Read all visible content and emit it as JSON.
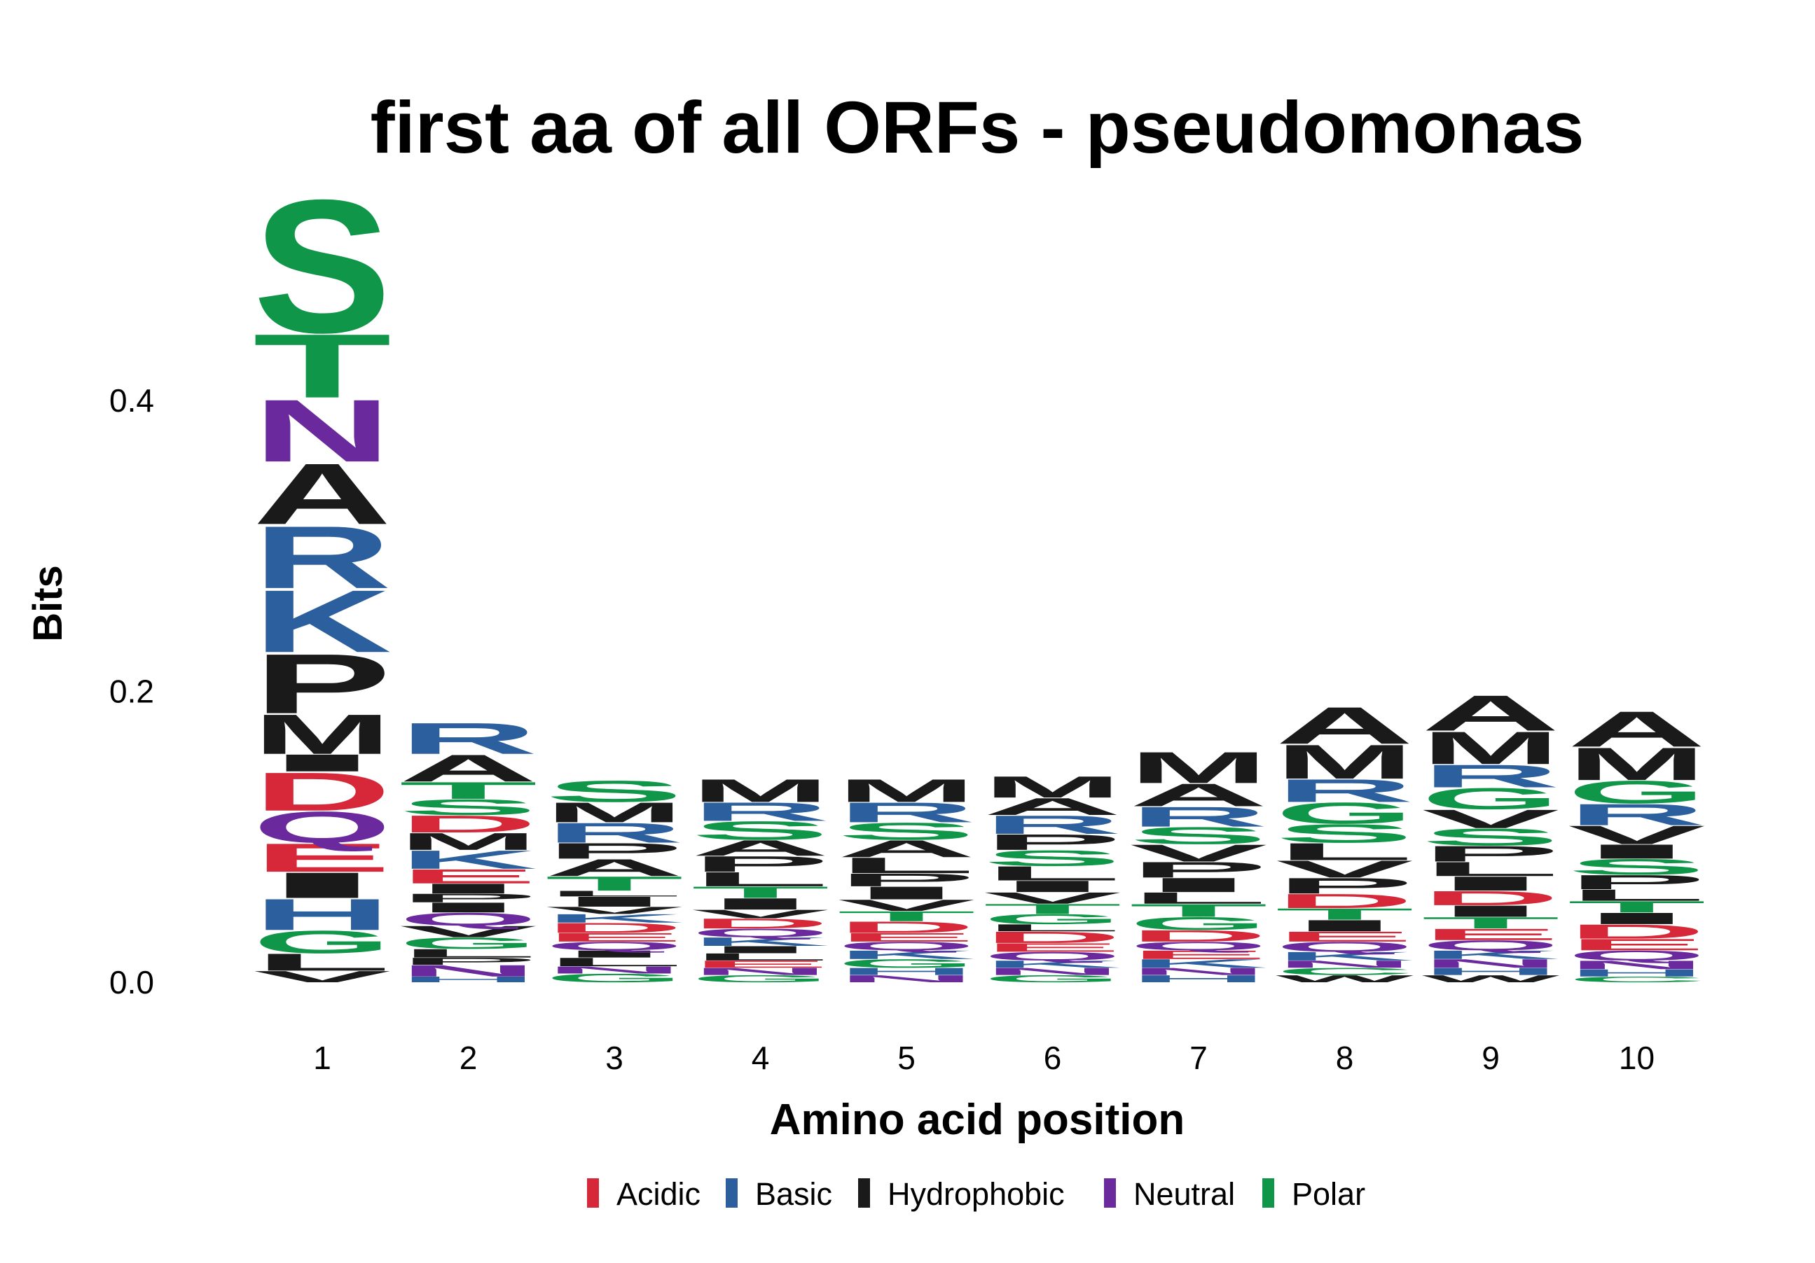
{
  "chart_data": {
    "type": "sequence-logo",
    "title": "first aa of all ORFs - pseudomonas",
    "xlabel": "Amino acid position",
    "ylabel": "Bits",
    "ylim": [
      0,
      0.5
    ],
    "yticks": [
      "0.0",
      "0.2",
      "0.4"
    ],
    "ytick_values": [
      0.0,
      0.2,
      0.4
    ],
    "grid": false,
    "legend_position": "bottom",
    "colors": {
      "Acidic": "#d62839",
      "Basic": "#2c5f9e",
      "Hydrophobic": "#1a1a1a",
      "Neutral": "#6a2a9e",
      "Polar": "#109648"
    },
    "legend": [
      "Acidic",
      "Basic",
      "Hydrophobic",
      "Neutral",
      "Polar"
    ],
    "residue_class": {
      "D": "Acidic",
      "E": "Acidic",
      "R": "Basic",
      "K": "Basic",
      "H": "Basic",
      "A": "Hydrophobic",
      "V": "Hydrophobic",
      "L": "Hydrophobic",
      "I": "Hydrophobic",
      "P": "Hydrophobic",
      "M": "Hydrophobic",
      "F": "Hydrophobic",
      "W": "Hydrophobic",
      "Q": "Neutral",
      "N": "Neutral",
      "S": "Polar",
      "T": "Polar",
      "G": "Polar",
      "Y": "Polar",
      "C": "Polar"
    },
    "positions": [
      {
        "label": "1",
        "stack": [
          [
            "V",
            0.008
          ],
          [
            "L",
            0.012
          ],
          [
            "G",
            0.016
          ],
          [
            "H",
            0.022
          ],
          [
            "I",
            0.018
          ],
          [
            "E",
            0.02
          ],
          [
            "Q",
            0.022
          ],
          [
            "D",
            0.027
          ],
          [
            "I",
            0.012
          ],
          [
            "M",
            0.028
          ],
          [
            "P",
            0.042
          ],
          [
            "K",
            0.044
          ],
          [
            "R",
            0.044
          ],
          [
            "A",
            0.043
          ],
          [
            "N",
            0.044
          ],
          [
            "T",
            0.045
          ],
          [
            "S",
            0.094
          ]
        ]
      },
      {
        "label": "2",
        "stack": [
          [
            "H",
            0.004
          ],
          [
            "N",
            0.008
          ],
          [
            "P",
            0.005
          ],
          [
            "L",
            0.006
          ],
          [
            "G",
            0.008
          ],
          [
            "V",
            0.008
          ],
          [
            "Q",
            0.009
          ],
          [
            "I",
            0.007
          ],
          [
            "P",
            0.006
          ],
          [
            "I",
            0.007
          ],
          [
            "E",
            0.01
          ],
          [
            "K",
            0.013
          ],
          [
            "M",
            0.012
          ],
          [
            "D",
            0.012
          ],
          [
            "S",
            0.011
          ],
          [
            "T",
            0.012
          ],
          [
            "A",
            0.019
          ],
          [
            "R",
            0.022
          ]
        ]
      },
      {
        "label": "3",
        "stack": [
          [
            "G",
            0.006
          ],
          [
            "N",
            0.005
          ],
          [
            "L",
            0.006
          ],
          [
            "I",
            0.005
          ],
          [
            "Q",
            0.006
          ],
          [
            "E",
            0.006
          ],
          [
            "D",
            0.007
          ],
          [
            "K",
            0.006
          ],
          [
            "V",
            0.005
          ],
          [
            "I",
            0.007
          ],
          [
            "L",
            0.004
          ],
          [
            "T",
            0.01
          ],
          [
            "A",
            0.012
          ],
          [
            "P",
            0.011
          ],
          [
            "R",
            0.014
          ],
          [
            "M",
            0.014
          ],
          [
            "S",
            0.015
          ]
        ]
      },
      {
        "label": "4",
        "stack": [
          [
            "G",
            0.005
          ],
          [
            "N",
            0.005
          ],
          [
            "E",
            0.005
          ],
          [
            "L",
            0.005
          ],
          [
            "I",
            0.005
          ],
          [
            "K",
            0.006
          ],
          [
            "Q",
            0.006
          ],
          [
            "D",
            0.007
          ],
          [
            "V",
            0.006
          ],
          [
            "I",
            0.008
          ],
          [
            "T",
            0.008
          ],
          [
            "L",
            0.01
          ],
          [
            "P",
            0.011
          ],
          [
            "A",
            0.011
          ],
          [
            "S",
            0.013
          ],
          [
            "R",
            0.013
          ],
          [
            "M",
            0.016
          ]
        ]
      },
      {
        "label": "5",
        "stack": [
          [
            "N",
            0.005
          ],
          [
            "H",
            0.005
          ],
          [
            "G",
            0.006
          ],
          [
            "K",
            0.006
          ],
          [
            "Q",
            0.006
          ],
          [
            "E",
            0.006
          ],
          [
            "D",
            0.008
          ],
          [
            "T",
            0.007
          ],
          [
            "V",
            0.008
          ],
          [
            "I",
            0.009
          ],
          [
            "P",
            0.009
          ],
          [
            "L",
            0.011
          ],
          [
            "A",
            0.012
          ],
          [
            "S",
            0.012
          ],
          [
            "R",
            0.014
          ],
          [
            "M",
            0.016
          ]
        ]
      },
      {
        "label": "6",
        "stack": [
          [
            "G",
            0.005
          ],
          [
            "N",
            0.005
          ],
          [
            "K",
            0.005
          ],
          [
            "Q",
            0.006
          ],
          [
            "E",
            0.006
          ],
          [
            "D",
            0.008
          ],
          [
            "L",
            0.005
          ],
          [
            "G",
            0.007
          ],
          [
            "T",
            0.007
          ],
          [
            "V",
            0.008
          ],
          [
            "I",
            0.008
          ],
          [
            "L",
            0.01
          ],
          [
            "S",
            0.011
          ],
          [
            "P",
            0.011
          ],
          [
            "R",
            0.013
          ],
          [
            "A",
            0.012
          ],
          [
            "M",
            0.015
          ]
        ]
      },
      {
        "label": "7",
        "stack": [
          [
            "H",
            0.005
          ],
          [
            "N",
            0.005
          ],
          [
            "K",
            0.006
          ],
          [
            "E",
            0.006
          ],
          [
            "Q",
            0.006
          ],
          [
            "D",
            0.008
          ],
          [
            "G",
            0.009
          ],
          [
            "T",
            0.009
          ],
          [
            "L",
            0.008
          ],
          [
            "I",
            0.01
          ],
          [
            "P",
            0.011
          ],
          [
            "V",
            0.012
          ],
          [
            "S",
            0.012
          ],
          [
            "R",
            0.014
          ],
          [
            "A",
            0.016
          ],
          [
            "M",
            0.022
          ]
        ]
      },
      {
        "label": "8",
        "stack": [
          [
            "W",
            0.005
          ],
          [
            "C",
            0.005
          ],
          [
            "N",
            0.005
          ],
          [
            "K",
            0.006
          ],
          [
            "Q",
            0.007
          ],
          [
            "E",
            0.007
          ],
          [
            "I",
            0.008
          ],
          [
            "T",
            0.008
          ],
          [
            "D",
            0.01
          ],
          [
            "P",
            0.011
          ],
          [
            "V",
            0.012
          ],
          [
            "L",
            0.012
          ],
          [
            "S",
            0.013
          ],
          [
            "G",
            0.015
          ],
          [
            "R",
            0.016
          ],
          [
            "M",
            0.024
          ],
          [
            "A",
            0.026
          ]
        ]
      },
      {
        "label": "9",
        "stack": [
          [
            "W",
            0.005
          ],
          [
            "H",
            0.005
          ],
          [
            "N",
            0.006
          ],
          [
            "K",
            0.006
          ],
          [
            "Q",
            0.007
          ],
          [
            "E",
            0.008
          ],
          [
            "T",
            0.008
          ],
          [
            "I",
            0.008
          ],
          [
            "D",
            0.01
          ],
          [
            "I",
            0.01
          ],
          [
            "L",
            0.01
          ],
          [
            "P",
            0.011
          ],
          [
            "S",
            0.012
          ],
          [
            "V",
            0.013
          ],
          [
            "G",
            0.015
          ],
          [
            "R",
            0.016
          ],
          [
            "M",
            0.023
          ],
          [
            "A",
            0.025
          ]
        ]
      },
      {
        "label": "10",
        "stack": [
          [
            "C",
            0.004
          ],
          [
            "H",
            0.005
          ],
          [
            "N",
            0.006
          ],
          [
            "Q",
            0.007
          ],
          [
            "E",
            0.008
          ],
          [
            "D",
            0.01
          ],
          [
            "I",
            0.008
          ],
          [
            "T",
            0.008
          ],
          [
            "L",
            0.008
          ],
          [
            "P",
            0.01
          ],
          [
            "S",
            0.011
          ],
          [
            "I",
            0.01
          ],
          [
            "V",
            0.013
          ],
          [
            "R",
            0.015
          ],
          [
            "G",
            0.016
          ],
          [
            "M",
            0.023
          ],
          [
            "A",
            0.025
          ]
        ]
      }
    ]
  }
}
